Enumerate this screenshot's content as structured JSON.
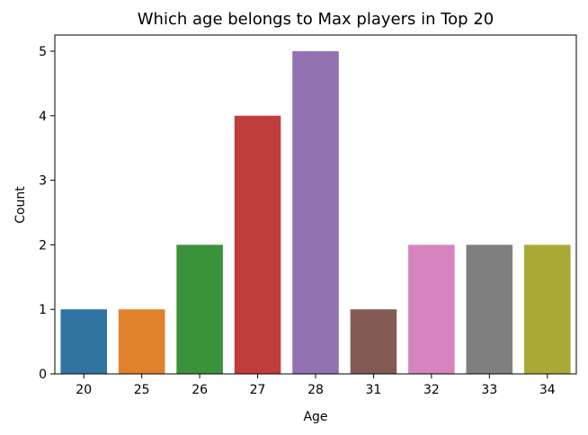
{
  "chart_data": {
    "type": "bar",
    "title": "Which age belongs to Max players in Top 20",
    "xlabel": "Age",
    "ylabel": "Count",
    "categories": [
      "20",
      "25",
      "26",
      "27",
      "28",
      "31",
      "32",
      "33",
      "34"
    ],
    "values": [
      1,
      1,
      2,
      4,
      5,
      1,
      2,
      2,
      2
    ],
    "colors": [
      "#3274a1",
      "#e1812c",
      "#3a923a",
      "#c03d3e",
      "#9372b2",
      "#845b53",
      "#d684bd",
      "#7f7f7f",
      "#a9aa35"
    ],
    "ylim": [
      0,
      5.25
    ],
    "yticks": [
      0,
      1,
      2,
      3,
      4,
      5
    ],
    "grid": false,
    "legend": "none"
  }
}
